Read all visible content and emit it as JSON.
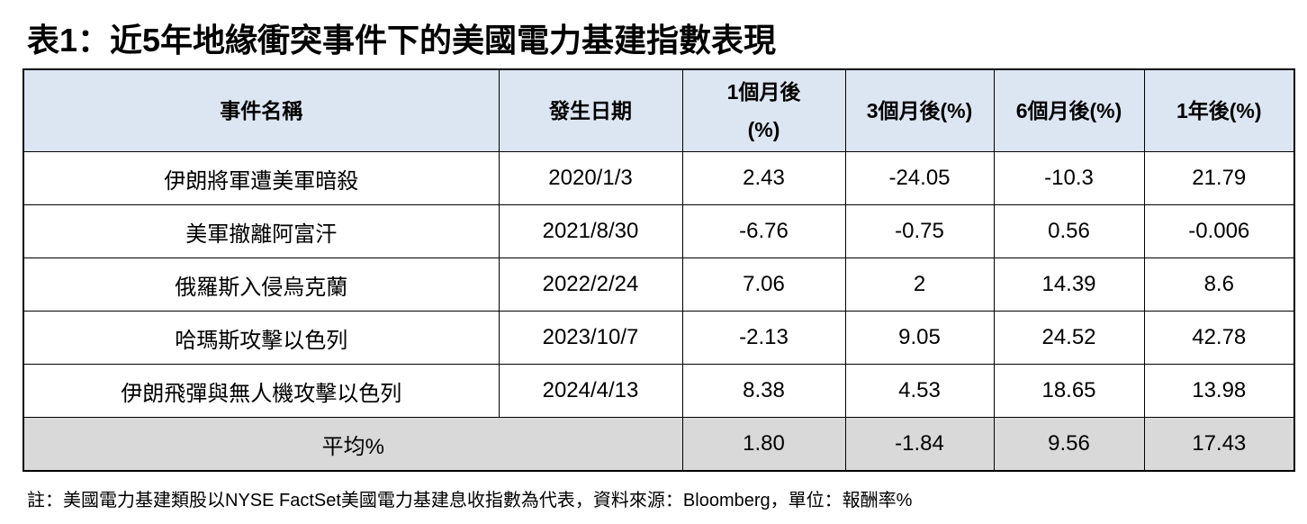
{
  "header": {
    "title": "表1：近5年地緣衝突事件下的美國電力基建指數表現"
  },
  "table": {
    "columns": [
      "事件名稱",
      "發生日期",
      "1個月後(%)",
      "3個月後(%)",
      "6個月後(%)",
      "1年後(%)"
    ],
    "rows": [
      [
        "伊朗將軍遭美軍暗殺",
        "2020/1/3",
        "2.43",
        "-24.05",
        "-10.3",
        "21.79"
      ],
      [
        "美軍撤離阿富汗",
        "2021/8/30",
        "-6.76",
        "-0.75",
        "0.56",
        "-0.006"
      ],
      [
        "俄羅斯入侵烏克蘭",
        "2022/2/24",
        "7.06",
        "2",
        "14.39",
        "8.6"
      ],
      [
        "哈瑪斯攻擊以色列",
        "2023/10/7",
        "-2.13",
        "9.05",
        "24.52",
        "42.78"
      ],
      [
        "伊朗飛彈與無人機攻擊以色列",
        "2024/4/13",
        "8.38",
        "4.53",
        "18.65",
        "13.98"
      ]
    ],
    "average": {
      "label": "平均%",
      "values": [
        "1.80",
        "-1.84",
        "9.56",
        "17.43"
      ]
    }
  },
  "footnote": "註：美國電力基建類股以NYSE FactSet美國電力基建息收指數為代表，資料來源：Bloomberg，單位：報酬率%"
}
